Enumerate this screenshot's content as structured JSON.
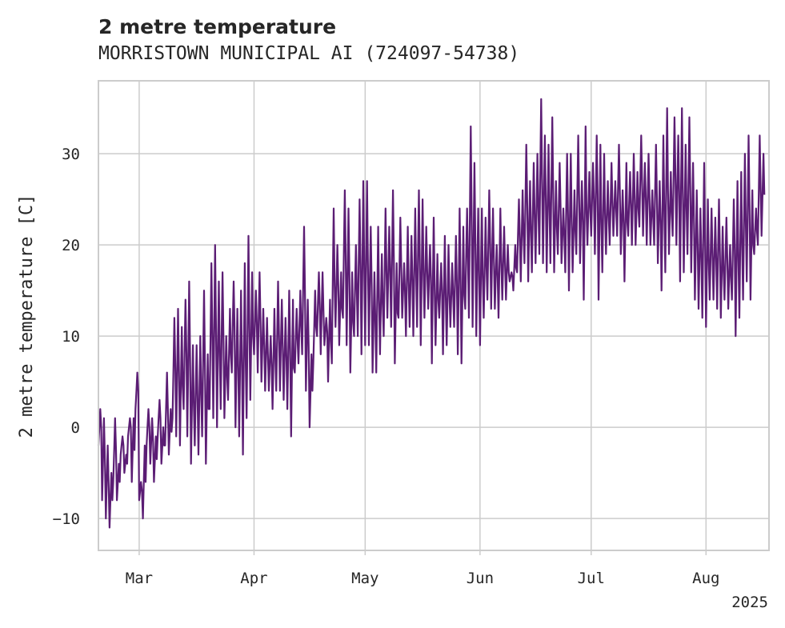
{
  "chart_data": {
    "type": "line",
    "title": "2 metre temperature",
    "subtitle": "MORRISTOWN MUNICIPAL AI (724097-54738)",
    "ylabel": "2 metre temperature [C]",
    "xlabel": "",
    "xlim": [
      "2025-02-18",
      "2025-08-18"
    ],
    "ylim": [
      -13.5,
      38.0
    ],
    "grid": true,
    "x_ticks": [
      {
        "date": "2025-03-01",
        "label": "Mar"
      },
      {
        "date": "2025-04-01",
        "label": "Apr"
      },
      {
        "date": "2025-05-01",
        "label": "May"
      },
      {
        "date": "2025-06-01",
        "label": "Jun"
      },
      {
        "date": "2025-07-01",
        "label": "Jul"
      },
      {
        "date": "2025-08-01",
        "label": "Aug"
      }
    ],
    "x_offset_label": "2025",
    "y_ticks": [
      -10,
      0,
      10,
      20,
      30
    ],
    "series": [
      {
        "color": "#5b1d74",
        "x": [
          "2025-02-18",
          "2025-02-19",
          "2025-02-20",
          "2025-02-21",
          "2025-02-22",
          "2025-02-23",
          "2025-02-24",
          "2025-02-25",
          "2025-02-26",
          "2025-02-27",
          "2025-02-28",
          "2025-03-01",
          "2025-03-02",
          "2025-03-03",
          "2025-03-04",
          "2025-03-05",
          "2025-03-06",
          "2025-03-07",
          "2025-03-08",
          "2025-03-09",
          "2025-03-10",
          "2025-03-11",
          "2025-03-12",
          "2025-03-13",
          "2025-03-14",
          "2025-03-15",
          "2025-03-16",
          "2025-03-17",
          "2025-03-18",
          "2025-03-19",
          "2025-03-20",
          "2025-03-21",
          "2025-03-22",
          "2025-03-23",
          "2025-03-24",
          "2025-03-25",
          "2025-03-26",
          "2025-03-27",
          "2025-03-28",
          "2025-03-29",
          "2025-03-30",
          "2025-03-31",
          "2025-04-01",
          "2025-04-02",
          "2025-04-03",
          "2025-04-04",
          "2025-04-05",
          "2025-04-06",
          "2025-04-07",
          "2025-04-08",
          "2025-04-09",
          "2025-04-10",
          "2025-04-11",
          "2025-04-12",
          "2025-04-13",
          "2025-04-14",
          "2025-04-15",
          "2025-04-16",
          "2025-04-17",
          "2025-04-18",
          "2025-04-19",
          "2025-04-20",
          "2025-04-21",
          "2025-04-22",
          "2025-04-23",
          "2025-04-24",
          "2025-04-25",
          "2025-04-26",
          "2025-04-27",
          "2025-04-28",
          "2025-04-29",
          "2025-04-30",
          "2025-05-01",
          "2025-05-02",
          "2025-05-03",
          "2025-05-04",
          "2025-05-05",
          "2025-05-06",
          "2025-05-07",
          "2025-05-08",
          "2025-05-09",
          "2025-05-10",
          "2025-05-11",
          "2025-05-12",
          "2025-05-13",
          "2025-05-14",
          "2025-05-15",
          "2025-05-16",
          "2025-05-17",
          "2025-05-18",
          "2025-05-19",
          "2025-05-20",
          "2025-05-21",
          "2025-05-22",
          "2025-05-23",
          "2025-05-24",
          "2025-05-25",
          "2025-05-26",
          "2025-05-27",
          "2025-05-28",
          "2025-05-29",
          "2025-05-30",
          "2025-05-31",
          "2025-06-01",
          "2025-06-02",
          "2025-06-03",
          "2025-06-04",
          "2025-06-05",
          "2025-06-06",
          "2025-06-07",
          "2025-06-08",
          "2025-06-09",
          "2025-06-10",
          "2025-06-11",
          "2025-06-12",
          "2025-06-13",
          "2025-06-14",
          "2025-06-15",
          "2025-06-16",
          "2025-06-17",
          "2025-06-18",
          "2025-06-19",
          "2025-06-20",
          "2025-06-21",
          "2025-06-22",
          "2025-06-23",
          "2025-06-24",
          "2025-06-25",
          "2025-06-26",
          "2025-06-27",
          "2025-06-28",
          "2025-06-29",
          "2025-06-30",
          "2025-07-01",
          "2025-07-02",
          "2025-07-03",
          "2025-07-04",
          "2025-07-05",
          "2025-07-06",
          "2025-07-07",
          "2025-07-08",
          "2025-07-09",
          "2025-07-10",
          "2025-07-11",
          "2025-07-12",
          "2025-07-13",
          "2025-07-14",
          "2025-07-15",
          "2025-07-16",
          "2025-07-17",
          "2025-07-18",
          "2025-07-19",
          "2025-07-20",
          "2025-07-21",
          "2025-07-22",
          "2025-07-23",
          "2025-07-24",
          "2025-07-25",
          "2025-07-26",
          "2025-07-27",
          "2025-07-28",
          "2025-07-29",
          "2025-07-30",
          "2025-07-31",
          "2025-08-01",
          "2025-08-02",
          "2025-08-03",
          "2025-08-04",
          "2025-08-05",
          "2025-08-06",
          "2025-08-07",
          "2025-08-08",
          "2025-08-09",
          "2025-08-10",
          "2025-08-11",
          "2025-08-12",
          "2025-08-13",
          "2025-08-14",
          "2025-08-15",
          "2025-08-16"
        ],
        "daily_min": [
          -2,
          -8,
          -10,
          -11,
          -6,
          -8,
          -3,
          -5,
          -1,
          -6,
          2,
          -8,
          -10,
          -2,
          -4,
          -6,
          -1,
          -4,
          -2,
          -3,
          1,
          -1,
          -2,
          2,
          -1,
          -4,
          -2,
          -3,
          -1,
          -4,
          2,
          1,
          0,
          2,
          1,
          3,
          6,
          0,
          -1,
          -3,
          1,
          3,
          8,
          6,
          5,
          4,
          4,
          2,
          4,
          4,
          3,
          2,
          -1,
          6,
          7,
          8,
          4,
          0,
          7,
          10,
          8,
          9,
          5,
          7,
          11,
          9,
          12,
          9,
          6,
          10,
          10,
          8,
          9,
          9,
          6,
          6,
          8,
          10,
          12,
          11,
          7,
          12,
          12,
          10,
          11,
          10,
          11,
          9,
          12,
          13,
          7,
          9,
          12,
          8,
          9,
          11,
          11,
          8,
          7,
          13,
          12,
          11,
          10,
          9,
          12,
          14,
          13,
          13,
          12,
          14,
          14,
          16,
          15,
          17,
          16,
          18,
          16,
          17,
          18,
          19,
          18,
          17,
          18,
          17,
          19,
          18,
          17,
          15,
          17,
          19,
          18,
          14,
          20,
          21,
          19,
          14,
          17,
          19,
          20,
          21,
          21,
          19,
          16,
          21,
          20,
          20,
          22,
          21,
          20,
          20,
          20,
          18,
          15,
          17,
          19,
          21,
          20,
          16,
          17,
          19,
          17,
          14,
          13,
          12,
          11,
          14,
          14,
          13,
          12,
          14,
          13,
          14,
          10,
          12,
          14,
          16,
          14,
          19,
          20,
          21
        ],
        "daily_max": [
          2,
          1,
          -2,
          -5,
          1,
          -4,
          -1,
          -3,
          1,
          1,
          6,
          -6,
          -2,
          2,
          1,
          -1,
          3,
          0,
          6,
          2,
          12,
          13,
          11,
          14,
          16,
          9,
          9,
          10,
          15,
          8,
          18,
          20,
          16,
          17,
          10,
          13,
          16,
          13,
          15,
          18,
          21,
          17,
          15,
          17,
          13,
          12,
          10,
          13,
          16,
          14,
          12,
          15,
          14,
          13,
          15,
          22,
          14,
          8,
          15,
          17,
          17,
          12,
          14,
          24,
          20,
          17,
          26,
          24,
          17,
          20,
          25,
          27,
          27,
          22,
          17,
          22,
          19,
          24,
          22,
          26,
          18,
          23,
          18,
          22,
          21,
          24,
          26,
          25,
          22,
          20,
          23,
          19,
          18,
          21,
          20,
          18,
          21,
          24,
          22,
          24,
          33,
          29,
          24,
          24,
          23,
          26,
          24,
          20,
          24,
          22,
          20,
          17,
          20,
          25,
          26,
          31,
          27,
          29,
          30,
          36,
          32,
          31,
          34,
          27,
          29,
          24,
          30,
          30,
          26,
          32,
          27,
          33,
          28,
          29,
          32,
          31,
          30,
          27,
          29,
          27,
          31,
          26,
          29,
          28,
          30,
          28,
          32,
          29,
          30,
          26,
          31,
          27,
          32,
          35,
          28,
          34,
          32,
          35,
          31,
          34,
          29,
          26,
          24,
          29,
          25,
          24,
          23,
          25,
          22,
          23,
          20,
          25,
          27,
          28,
          30,
          32,
          26,
          24,
          32,
          30
        ]
      }
    ]
  }
}
